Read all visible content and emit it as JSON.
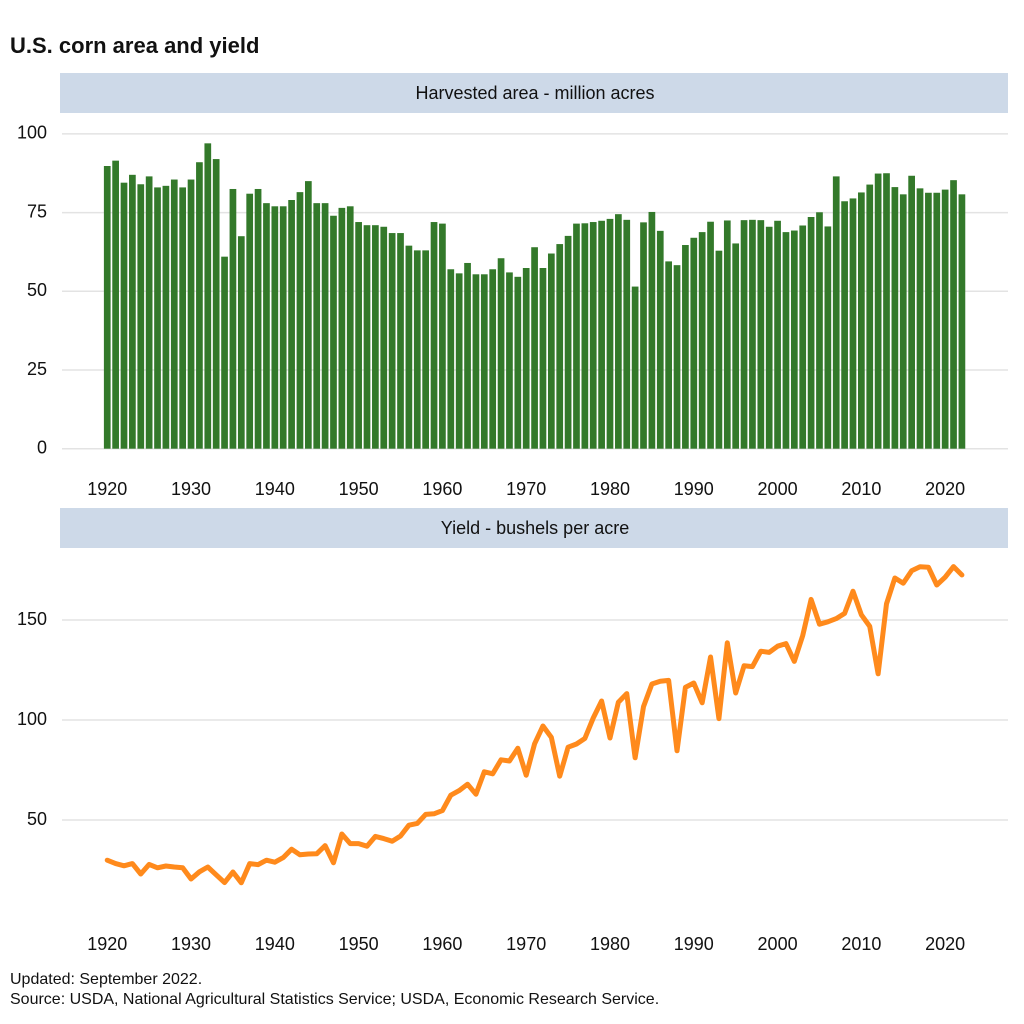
{
  "title": "U.S. corn area and yield",
  "notes": [
    "Updated: September 2022.",
    "Source: USDA, National Agricultural Statistics Service; USDA, Economic Research Service."
  ],
  "chart_data": [
    {
      "type": "bar",
      "title": "Harvested area - million acres",
      "color": "#33792a",
      "grid": true,
      "x": [
        1920,
        1921,
        1922,
        1923,
        1924,
        1925,
        1926,
        1927,
        1928,
        1929,
        1930,
        1931,
        1932,
        1933,
        1934,
        1935,
        1936,
        1937,
        1938,
        1939,
        1940,
        1941,
        1942,
        1943,
        1944,
        1945,
        1946,
        1947,
        1948,
        1949,
        1950,
        1951,
        1952,
        1953,
        1954,
        1955,
        1956,
        1957,
        1958,
        1959,
        1960,
        1961,
        1962,
        1963,
        1964,
        1965,
        1966,
        1967,
        1968,
        1969,
        1970,
        1971,
        1972,
        1973,
        1974,
        1975,
        1976,
        1977,
        1978,
        1979,
        1980,
        1981,
        1982,
        1983,
        1984,
        1985,
        1986,
        1987,
        1988,
        1989,
        1990,
        1991,
        1992,
        1993,
        1994,
        1995,
        1996,
        1997,
        1998,
        1999,
        2000,
        2001,
        2002,
        2003,
        2004,
        2005,
        2006,
        2007,
        2008,
        2009,
        2010,
        2011,
        2012,
        2013,
        2014,
        2015,
        2016,
        2017,
        2018,
        2019,
        2020,
        2021,
        2022
      ],
      "values": [
        89.8,
        91.5,
        84.5,
        87,
        84,
        86.5,
        83,
        83.5,
        85.5,
        83,
        85.5,
        91,
        97,
        92,
        61,
        82.5,
        67.5,
        81,
        82.5,
        78,
        77,
        77,
        79,
        81.5,
        85,
        78,
        78,
        74,
        76.5,
        77,
        72,
        71,
        71,
        70.5,
        68.5,
        68.5,
        64.5,
        63,
        63,
        72,
        71.5,
        57,
        55.7,
        59,
        55.4,
        55.4,
        57,
        60.5,
        56,
        54.6,
        57.4,
        64,
        57.4,
        62,
        65,
        67.6,
        71.5,
        71.6,
        72,
        72.4,
        73,
        74.5,
        72.7,
        51.5,
        71.9,
        75.2,
        69.2,
        59.5,
        58.3,
        64.7,
        67,
        68.8,
        72.1,
        62.9,
        72.5,
        65.2,
        72.6,
        72.7,
        72.6,
        70.5,
        72.4,
        68.8,
        69.3,
        70.9,
        73.6,
        75.1,
        70.6,
        86.5,
        78.6,
        79.5,
        81.4,
        83.9,
        87.4,
        87.5,
        83.1,
        80.8,
        86.7,
        82.7,
        81.3,
        81.3,
        82.3,
        85.3,
        80.8
      ],
      "xlim": [
        1914.6,
        2027.5
      ],
      "xticks": [
        1920,
        1930,
        1940,
        1950,
        1960,
        1970,
        1980,
        1990,
        2000,
        2010,
        2020
      ],
      "ylim": [
        -2,
        106
      ],
      "yticks": [
        0,
        25,
        50,
        75,
        100
      ]
    },
    {
      "type": "line",
      "title": "Yield - bushels per acre",
      "color": "#ff8a1c",
      "grid": true,
      "x": [
        1920,
        1921,
        1922,
        1923,
        1924,
        1925,
        1926,
        1927,
        1928,
        1929,
        1930,
        1931,
        1932,
        1933,
        1934,
        1935,
        1936,
        1937,
        1938,
        1939,
        1940,
        1941,
        1942,
        1943,
        1944,
        1945,
        1946,
        1947,
        1948,
        1949,
        1950,
        1951,
        1952,
        1953,
        1954,
        1955,
        1956,
        1957,
        1958,
        1959,
        1960,
        1961,
        1962,
        1963,
        1964,
        1965,
        1966,
        1967,
        1968,
        1969,
        1970,
        1971,
        1972,
        1973,
        1974,
        1975,
        1976,
        1977,
        1978,
        1979,
        1980,
        1981,
        1982,
        1983,
        1984,
        1985,
        1986,
        1987,
        1988,
        1989,
        1990,
        1991,
        1992,
        1993,
        1994,
        1995,
        1996,
        1997,
        1998,
        1999,
        2000,
        2001,
        2002,
        2003,
        2004,
        2005,
        2006,
        2007,
        2008,
        2009,
        2010,
        2011,
        2012,
        2013,
        2014,
        2015,
        2016,
        2017,
        2018,
        2019,
        2020,
        2021,
        2022
      ],
      "values": [
        29.9,
        28.2,
        27.1,
        28.2,
        23.0,
        27.8,
        26.1,
        27.0,
        26.5,
        26.1,
        20.5,
        24.1,
        26.5,
        22.6,
        18.7,
        24.0,
        18.6,
        28.2,
        27.7,
        29.9,
        28.9,
        31.2,
        35.4,
        32.6,
        33.0,
        33.1,
        37.2,
        28.6,
        43.0,
        38.2,
        38.2,
        36.9,
        41.8,
        40.7,
        39.4,
        42.0,
        47.4,
        48.3,
        52.8,
        53.1,
        54.7,
        62.4,
        64.7,
        67.9,
        62.9,
        74.1,
        73.1,
        80.1,
        79.5,
        85.9,
        72.4,
        88.1,
        97.0,
        91.3,
        71.9,
        86.4,
        88.0,
        90.8,
        101.0,
        109.5,
        91.0,
        108.9,
        113.2,
        81.1,
        106.7,
        118.0,
        119.4,
        119.8,
        84.6,
        116.3,
        118.5,
        108.6,
        131.5,
        100.7,
        138.6,
        113.5,
        127.1,
        126.7,
        134.4,
        133.8,
        136.9,
        138.2,
        129.3,
        142.2,
        160.3,
        147.9,
        149.1,
        150.7,
        153.3,
        164.4,
        152.6,
        146.8,
        123.1,
        158.1,
        171.0,
        168.4,
        174.6,
        176.6,
        176.4,
        167.5,
        171.4,
        176.7,
        172.5
      ],
      "xlim": [
        1914.6,
        2027.5
      ],
      "xticks": [
        1920,
        1930,
        1940,
        1950,
        1960,
        1970,
        1980,
        1990,
        2000,
        2010,
        2020
      ],
      "ylim": [
        10,
        185
      ],
      "yticks": [
        50,
        100,
        150
      ]
    }
  ]
}
